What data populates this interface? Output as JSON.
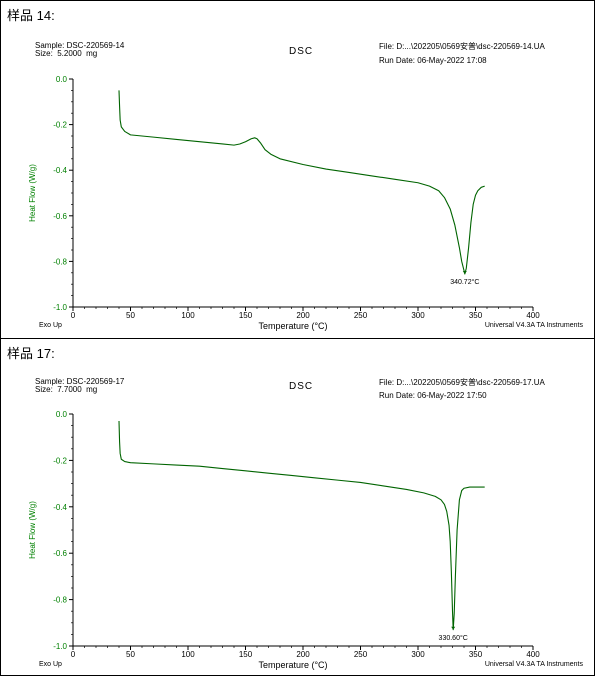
{
  "panels": [
    {
      "sample_title": "样品 14:",
      "sample": "Sample: DSC-220569-14",
      "size": "Size:  5.2000  mg",
      "method": "DSC",
      "file": "File: D:...\\202205\\0569安普\\dsc-220569-14.UA",
      "run_date": "Run Date: 06-May-2022 17:08",
      "footer_left": "Exo Up",
      "footer_right": "Universal V4.3A TA Instruments"
    },
    {
      "sample_title": "样品 17:",
      "sample": "Sample: DSC-220569-17",
      "size": "Size:  7.7000  mg",
      "method": "DSC",
      "file": "File: D:...\\202205\\0569安普\\dsc-220569-17.UA",
      "run_date": "Run Date: 06-May-2022 17:50",
      "footer_left": "Exo Up",
      "footer_right": "Universal V4.3A TA Instruments"
    }
  ],
  "colors": {
    "curve": "#006400",
    "ylabel": "#008000",
    "axis": "#000000"
  },
  "chart_data": [
    {
      "type": "line",
      "xlabel": "Temperature (°C)",
      "ylabel": "Heat Flow (W/g)",
      "xlim": [
        0,
        400
      ],
      "ylim": [
        -1.0,
        0.0
      ],
      "xticks": [
        "0",
        "50",
        "100",
        "150",
        "200",
        "250",
        "300",
        "350",
        "400"
      ],
      "yticks": [
        "0.0",
        "-0.2",
        "-0.4",
        "-0.6",
        "-0.8",
        "-1.0"
      ],
      "grid": false,
      "series": [
        {
          "x": [
            40,
            40.5,
            41,
            42,
            45,
            50,
            70,
            90,
            110,
            130,
            140,
            145,
            150,
            155,
            158,
            160,
            163,
            167,
            172,
            180,
            200,
            220,
            240,
            260,
            280,
            300,
            310,
            318,
            323,
            328,
            332,
            336,
            338,
            340,
            340.72,
            342,
            344,
            346,
            348,
            350,
            352,
            355,
            358
          ],
          "y": [
            -0.05,
            -0.12,
            -0.18,
            -0.21,
            -0.23,
            -0.245,
            -0.255,
            -0.265,
            -0.275,
            -0.285,
            -0.29,
            -0.285,
            -0.275,
            -0.262,
            -0.258,
            -0.262,
            -0.28,
            -0.31,
            -0.33,
            -0.35,
            -0.375,
            -0.395,
            -0.41,
            -0.425,
            -0.44,
            -0.455,
            -0.47,
            -0.49,
            -0.52,
            -0.57,
            -0.64,
            -0.74,
            -0.8,
            -0.84,
            -0.855,
            -0.83,
            -0.74,
            -0.63,
            -0.55,
            -0.51,
            -0.49,
            -0.475,
            -0.47
          ]
        }
      ],
      "annotations": [
        {
          "x": 340.72,
          "y": -0.855,
          "text": "340.72°C"
        }
      ]
    },
    {
      "type": "line",
      "xlabel": "Temperature (°C)",
      "ylabel": "Heat Flow (W/g)",
      "xlim": [
        0,
        400
      ],
      "ylim": [
        -1.0,
        0.0
      ],
      "xticks": [
        "0",
        "50",
        "100",
        "150",
        "200",
        "250",
        "300",
        "350",
        "400"
      ],
      "yticks": [
        "0.0",
        "-0.2",
        "-0.4",
        "-0.6",
        "-0.8",
        "-1.0"
      ],
      "grid": false,
      "series": [
        {
          "x": [
            40,
            40.5,
            41,
            42,
            45,
            50,
            70,
            90,
            110,
            130,
            150,
            170,
            190,
            210,
            230,
            250,
            270,
            290,
            305,
            315,
            320,
            323,
            325,
            327,
            328,
            329,
            330,
            330.6,
            331.5,
            332.5,
            334,
            336,
            338,
            340,
            345,
            350,
            358
          ],
          "y": [
            -0.03,
            -0.12,
            -0.17,
            -0.195,
            -0.205,
            -0.21,
            -0.215,
            -0.22,
            -0.225,
            -0.235,
            -0.245,
            -0.255,
            -0.265,
            -0.275,
            -0.285,
            -0.295,
            -0.31,
            -0.325,
            -0.34,
            -0.355,
            -0.37,
            -0.39,
            -0.42,
            -0.48,
            -0.55,
            -0.68,
            -0.85,
            -0.93,
            -0.86,
            -0.7,
            -0.5,
            -0.37,
            -0.33,
            -0.32,
            -0.315,
            -0.315,
            -0.315
          ]
        }
      ],
      "annotations": [
        {
          "x": 330.6,
          "y": -0.93,
          "text": "330.60°C"
        }
      ]
    }
  ]
}
